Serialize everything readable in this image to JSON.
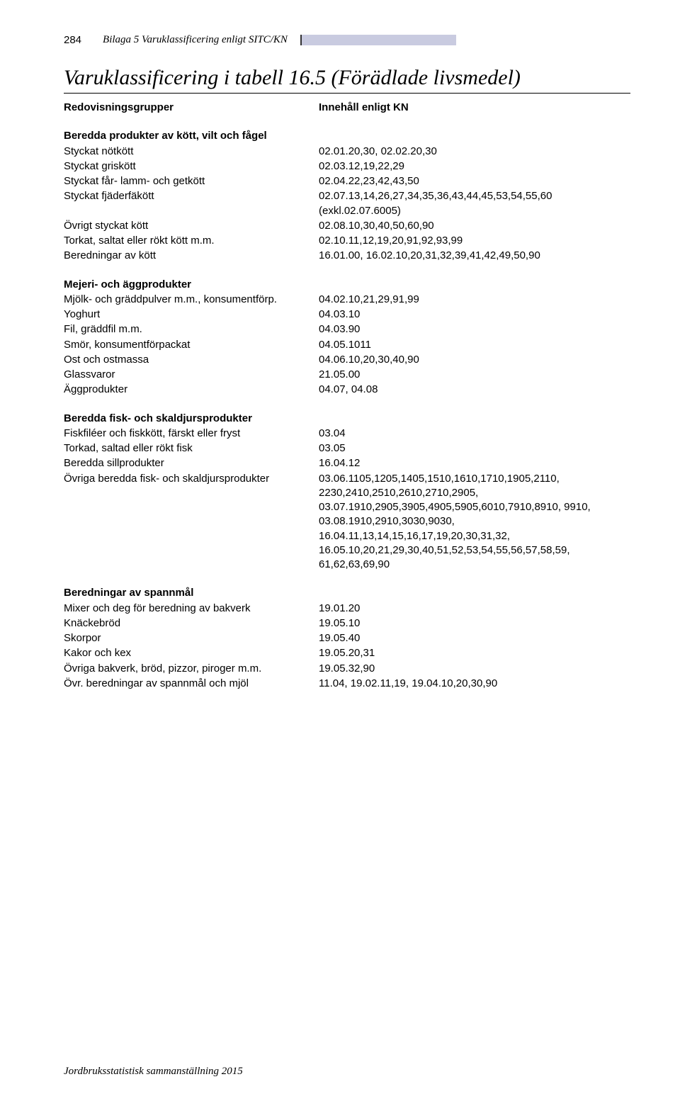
{
  "header": {
    "page_number": "284",
    "label": "Bilaga 5   Varuklassificering enligt SITC/KN"
  },
  "title": "Varuklassificering i tabell 16.5 (Förädlade livsmedel)",
  "columns": {
    "left": "Redovisningsgrupper",
    "right": "Innehåll enligt KN"
  },
  "sections": [
    {
      "heading": "Beredda produkter av kött, vilt och fågel",
      "rows": [
        {
          "label": "Styckat nötkött",
          "value": "02.01.20,30, 02.02.20,30"
        },
        {
          "label": "Styckat griskött",
          "value": "02.03.12,19,22,29"
        },
        {
          "label": "Styckat får- lamm- och getkött",
          "value": "02.04.22,23,42,43,50"
        },
        {
          "label": "Styckat fjäderfäkött",
          "value": "02.07.13,14,26,27,34,35,36,43,44,45,53,54,55,60 (exkl.02.07.6005)"
        },
        {
          "label": "Övrigt styckat kött",
          "value": "02.08.10,30,40,50,60,90"
        },
        {
          "label": "Torkat, saltat eller rökt kött m.m.",
          "value": "02.10.11,12,19,20,91,92,93,99"
        },
        {
          "label": "Beredningar av kött",
          "value": "16.01.00, 16.02.10,20,31,32,39,41,42,49,50,90"
        }
      ]
    },
    {
      "heading": "Mejeri- och äggprodukter",
      "rows": [
        {
          "label": "Mjölk- och gräddpulver m.m., konsumentförp.",
          "value": "04.02.10,21,29,91,99"
        },
        {
          "label": "Yoghurt",
          "value": "04.03.10"
        },
        {
          "label": "Fil, gräddfil m.m.",
          "value": "04.03.90"
        },
        {
          "label": "Smör, konsumentförpackat",
          "value": "04.05.1011"
        },
        {
          "label": "Ost och ostmassa",
          "value": "04.06.10,20,30,40,90"
        },
        {
          "label": "Glassvaror",
          "value": "21.05.00"
        },
        {
          "label": "Äggprodukter",
          "value": "04.07, 04.08"
        }
      ]
    },
    {
      "heading": "Beredda fisk- och skaldjursprodukter",
      "rows": [
        {
          "label": "Fiskfiléer och fiskkött, färskt eller fryst",
          "value": "03.04"
        },
        {
          "label": "Torkad, saltad eller rökt fisk",
          "value": "03.05"
        },
        {
          "label": "Beredda sillprodukter",
          "value": "16.04.12"
        },
        {
          "label": "Övriga beredda fisk- och skaldjursprodukter",
          "value": "03.06.1105,1205,1405,1510,1610,1710,1905,2110, 2230,2410,2510,2610,2710,2905, 03.07.1910,2905,3905,4905,5905,6010,7910,8910, 9910, 03.08.1910,2910,3030,9030, 16.04.11,13,14,15,16,17,19,20,30,31,32, 16.05.10,20,21,29,30,40,51,52,53,54,55,56,57,58,59, 61,62,63,69,90"
        }
      ]
    },
    {
      "heading": "Beredningar av spannmål",
      "rows": [
        {
          "label": "Mixer och deg för beredning av bakverk",
          "value": "19.01.20"
        },
        {
          "label": "Knäckebröd",
          "value": "19.05.10"
        },
        {
          "label": "Skorpor",
          "value": "19.05.40"
        },
        {
          "label": "Kakor och kex",
          "value": "19.05.20,31"
        },
        {
          "label": "Övriga bakverk, bröd, pizzor, piroger m.m.",
          "value": "19.05.32,90"
        },
        {
          "label": "Övr. beredningar av spannmål och mjöl",
          "value": "11.04, 19.02.11,19, 19.04.10,20,30,90"
        }
      ]
    }
  ],
  "footer": "Jordbruksstatistisk sammanställning 2015"
}
